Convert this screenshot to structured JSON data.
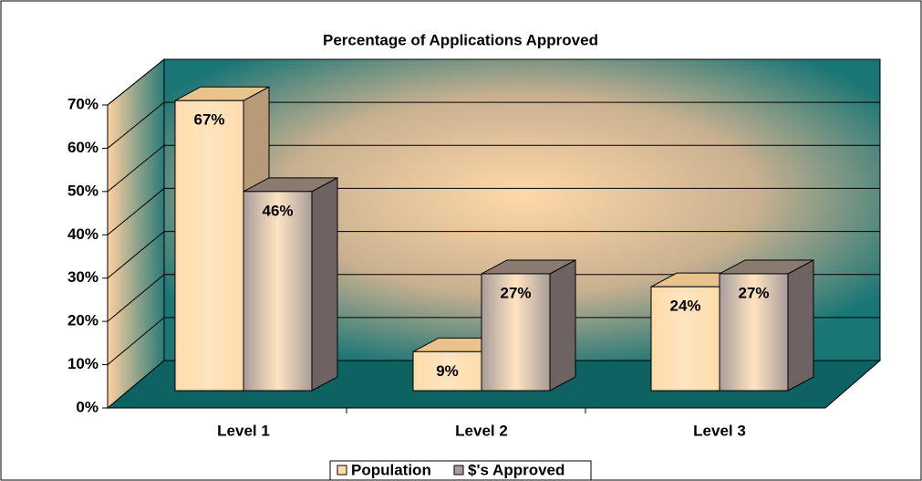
{
  "chart_data": {
    "type": "bar3d",
    "title": "Percentage of Applications Approved",
    "categories": [
      "Level 1",
      "Level 2",
      "Level 3"
    ],
    "series": [
      {
        "name": "Population",
        "color": "#ffdcaa",
        "values": [
          67,
          9,
          24
        ],
        "value_labels": [
          "67%",
          "9%",
          "24%"
        ]
      },
      {
        "name": "$'s Approved",
        "color": "#a89c9c",
        "values": [
          46,
          27,
          27
        ],
        "value_labels": [
          "46%",
          "27%",
          "27%"
        ]
      }
    ],
    "ylim": [
      0,
      70
    ],
    "yticks": [
      {
        "value": 0,
        "label": "0%"
      },
      {
        "value": 10,
        "label": "10%"
      },
      {
        "value": 20,
        "label": "20%"
      },
      {
        "value": 30,
        "label": "30%"
      },
      {
        "value": 40,
        "label": "40%"
      },
      {
        "value": 50,
        "label": "50%"
      },
      {
        "value": 60,
        "label": "60%"
      },
      {
        "value": 70,
        "label": "70%"
      }
    ],
    "grid": true,
    "legend": "bottom"
  }
}
